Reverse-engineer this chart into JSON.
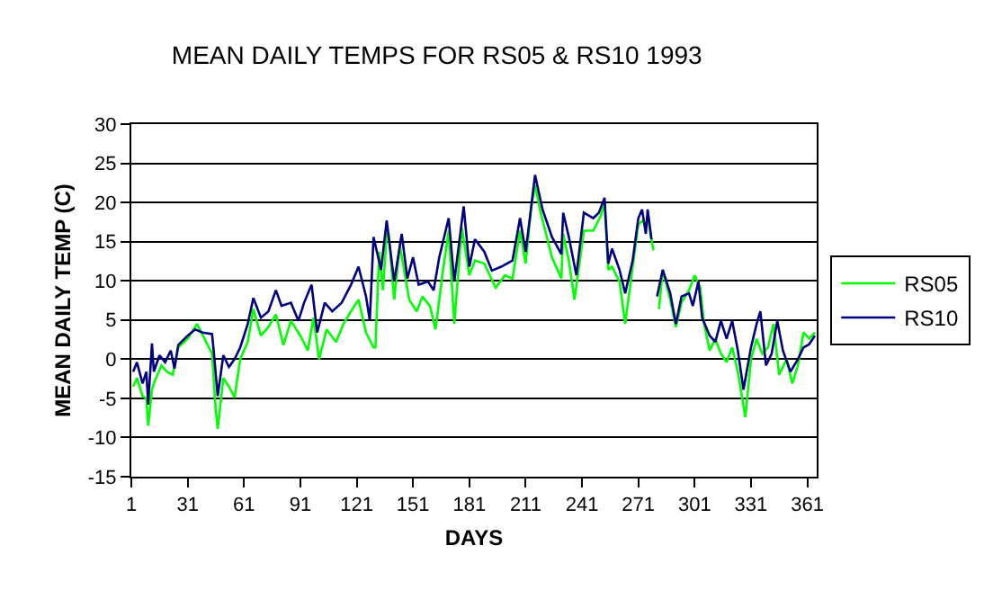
{
  "chart_data": {
    "type": "line",
    "title": "MEAN DAILY TEMPS FOR RS05 & RS10 1993",
    "xlabel": "DAYS",
    "ylabel": "MEAN DAILY TEMP (C)",
    "xlim": [
      1,
      366
    ],
    "xticks": [
      1,
      31,
      61,
      91,
      121,
      151,
      181,
      211,
      241,
      271,
      301,
      331,
      361
    ],
    "ylim": [
      -15,
      30
    ],
    "yticks": [
      -15,
      -10,
      -5,
      0,
      5,
      10,
      15,
      20,
      25,
      30
    ],
    "grid": "y",
    "legend": "right",
    "marker": "none",
    "line_style": "solid",
    "series": [
      {
        "name": "RS05",
        "color": "#00ff00",
        "x": [
          2,
          4,
          7,
          9,
          10,
          12,
          13,
          17,
          20,
          23,
          26,
          31,
          36,
          40,
          44,
          46,
          47,
          50,
          53,
          56,
          59,
          63,
          66,
          70,
          74,
          78,
          82,
          86,
          91,
          95,
          98,
          101,
          105,
          110,
          114,
          118,
          122,
          126,
          130,
          131,
          133,
          135,
          137,
          138,
          141,
          144,
          149,
          153,
          156,
          160,
          163,
          167,
          170,
          173,
          177,
          181,
          184,
          189,
          195,
          200,
          204,
          208,
          211,
          214,
          216,
          219,
          225,
          230,
          231,
          234,
          237,
          242,
          247,
          251,
          253,
          255,
          257,
          261,
          264,
          268,
          271,
          273,
          275,
          276,
          279,
          280,
          282,
          284,
          288,
          291,
          294,
          298,
          301,
          304,
          306,
          309,
          312,
          315,
          318,
          321,
          324,
          328,
          331,
          334,
          337,
          340,
          343,
          346,
          350,
          353,
          356,
          359,
          362,
          365
        ],
        "values": [
          -3.5,
          -2.4,
          -4.7,
          -5.0,
          -8.5,
          -3.9,
          -3.1,
          -0.8,
          -1.6,
          -2.0,
          1.5,
          2.6,
          4.5,
          2.6,
          0.7,
          -6.6,
          -8.9,
          -2.4,
          -3.5,
          -4.9,
          0,
          2.2,
          6.4,
          3.0,
          4.1,
          5.7,
          1.8,
          4.9,
          3.0,
          1.1,
          5.3,
          0,
          3.8,
          2.2,
          4.5,
          6.1,
          7.6,
          3.4,
          1.5,
          1.5,
          13.7,
          8.8,
          16,
          16,
          7.6,
          14.5,
          7.6,
          6.1,
          8,
          6.8,
          3.8,
          11.4,
          16.4,
          4.5,
          16.8,
          10.7,
          12.6,
          12.2,
          9.1,
          10.7,
          10.3,
          16.4,
          12.2,
          19.5,
          22.2,
          18.7,
          13,
          10.3,
          16,
          12.6,
          7.6,
          16.4,
          16.4,
          18.3,
          19.9,
          11.4,
          11.8,
          9.9,
          4.5,
          11.8,
          17.2,
          17.6,
          17.2,
          18.2,
          13.9,
          null,
          6.4,
          11.4,
          7.6,
          4.1,
          7.2,
          8.8,
          10.7,
          9.1,
          4.5,
          1.1,
          2.6,
          0.7,
          -0.4,
          1.5,
          -1.6,
          -7.4,
          0,
          2.6,
          0.7,
          1.5,
          4.5,
          -2.0,
          0,
          -3.1,
          -0.8,
          3.4,
          2.6,
          3.4
        ]
      },
      {
        "name": "RS10",
        "color": "#000080",
        "x": [
          2,
          4,
          7,
          9,
          10,
          12,
          13,
          16,
          19,
          22,
          24,
          26,
          31,
          35,
          39,
          44,
          45,
          47,
          50,
          53,
          56,
          59,
          63,
          66,
          70,
          74,
          78,
          81,
          86,
          90,
          93,
          97,
          100,
          104,
          108,
          113,
          118,
          122,
          126,
          128,
          130,
          134,
          137,
          141,
          145,
          148,
          151,
          154,
          159,
          162,
          165,
          170,
          173,
          178,
          181,
          184,
          189,
          193,
          198,
          204,
          208,
          211,
          214,
          216,
          220,
          225,
          230,
          231,
          234,
          238,
          242,
          247,
          250,
          253,
          255,
          257,
          261,
          264,
          268,
          271,
          273,
          275,
          276,
          278,
          280,
          281,
          284,
          288,
          291,
          294,
          298,
          300,
          303,
          305,
          309,
          312,
          315,
          318,
          321,
          324,
          327,
          331,
          334,
          336,
          339,
          342,
          345,
          348,
          352,
          356,
          359,
          362,
          365
        ],
        "values": [
          -1.6,
          -0.4,
          -3.1,
          -1.6,
          -5.8,
          2.0,
          -1.6,
          0.5,
          -0.4,
          1.1,
          -1.2,
          1.8,
          3.0,
          3.8,
          3.4,
          3.2,
          0.7,
          -4.7,
          0.5,
          -1.0,
          0,
          1.5,
          4.5,
          7.8,
          5.3,
          6.1,
          8.8,
          6.8,
          7.2,
          4.9,
          7.2,
          9.5,
          3.4,
          7.2,
          6.1,
          7.2,
          9.5,
          11.8,
          8,
          4.9,
          15.6,
          11.4,
          17.7,
          9.9,
          16.0,
          10.3,
          13,
          9.5,
          9.9,
          8.8,
          13,
          18,
          9.9,
          19.5,
          11.8,
          15.3,
          13.7,
          11.3,
          11.8,
          12.6,
          18,
          13.7,
          19.5,
          23.5,
          19.1,
          15.6,
          13.4,
          18.7,
          15.6,
          10.7,
          18.7,
          18,
          18.7,
          20.6,
          12.2,
          14.1,
          11.4,
          8.4,
          12.6,
          18,
          19.1,
          16,
          19.1,
          15.3,
          null,
          8,
          11.4,
          8.4,
          4.5,
          8,
          8.4,
          6.8,
          9.9,
          5.3,
          3,
          2.2,
          4.9,
          2.6,
          4.9,
          1.1,
          -3.9,
          1.5,
          4.5,
          6.1,
          -0.8,
          0.7,
          4.9,
          1.1,
          -1.6,
          0,
          1.5,
          1.9,
          3.0
        ]
      }
    ]
  }
}
